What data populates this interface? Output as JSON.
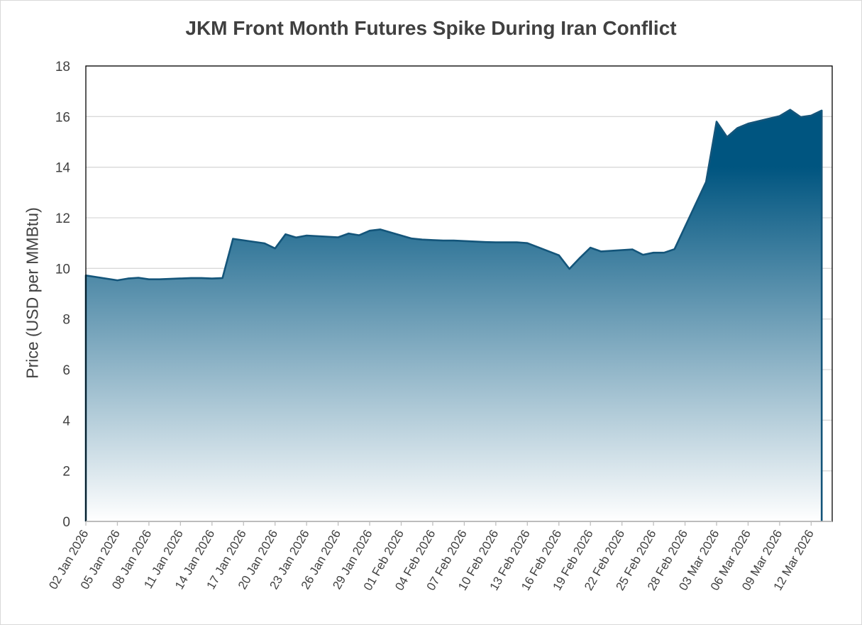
{
  "chart_data": {
    "type": "area",
    "title": "JKM Front Month Futures Spike During Iran Conflict",
    "xlabel": "",
    "ylabel": "Price (USD per MMBtu)",
    "ylim": [
      0,
      18
    ],
    "yticks": [
      0,
      2,
      4,
      6,
      8,
      10,
      12,
      14,
      16,
      18
    ],
    "xlim": [
      "2026-01-02",
      "2026-03-14"
    ],
    "xtick_labels": [
      "02 Jan 2026",
      "05 Jan 2026",
      "08 Jan 2026",
      "11 Jan 2026",
      "14 Jan 2026",
      "17 Jan 2026",
      "20 Jan 2026",
      "23 Jan 2026",
      "26 Jan 2026",
      "29 Jan 2026",
      "01 Feb 2026",
      "04 Feb 2026",
      "07 Feb 2026",
      "10 Feb 2026",
      "13 Feb 2026",
      "16 Feb 2026",
      "19 Feb 2026",
      "22 Feb 2026",
      "25 Feb 2026",
      "28 Feb 2026",
      "03 Mar 2026",
      "06 Mar 2026",
      "09 Mar 2026",
      "12 Mar 2026"
    ],
    "grid": true,
    "legend": "none",
    "colors": {
      "line": "#14557a",
      "fill_top": "#005580",
      "fill_bottom": "#ffffff",
      "grid": "#d9d9d9",
      "axis": "#000000"
    },
    "series": [
      {
        "x": [
          "2026-01-02",
          "2026-01-05",
          "2026-01-06",
          "2026-01-07",
          "2026-01-08",
          "2026-01-09",
          "2026-01-12",
          "2026-01-13",
          "2026-01-14",
          "2026-01-15",
          "2026-01-16",
          "2026-01-19",
          "2026-01-20",
          "2026-01-21",
          "2026-01-22",
          "2026-01-23",
          "2026-01-26",
          "2026-01-27",
          "2026-01-28",
          "2026-01-29",
          "2026-01-30",
          "2026-02-02",
          "2026-02-03",
          "2026-02-04",
          "2026-02-05",
          "2026-02-06",
          "2026-02-09",
          "2026-02-10",
          "2026-02-11",
          "2026-02-12",
          "2026-02-13",
          "2026-02-16",
          "2026-02-17",
          "2026-02-18",
          "2026-02-19",
          "2026-02-20",
          "2026-02-23",
          "2026-02-24",
          "2026-02-25",
          "2026-02-26",
          "2026-02-27",
          "2026-03-02",
          "2026-03-03",
          "2026-03-04",
          "2026-03-05",
          "2026-03-06",
          "2026-03-09",
          "2026-03-10",
          "2026-03-11",
          "2026-03-12",
          "2026-03-13"
        ],
        "values": [
          9.72,
          9.53,
          9.6,
          9.63,
          9.57,
          9.57,
          9.62,
          9.62,
          9.6,
          9.62,
          11.17,
          10.99,
          10.79,
          11.35,
          11.22,
          11.3,
          11.23,
          11.38,
          11.31,
          11.49,
          11.54,
          11.18,
          11.14,
          11.12,
          11.1,
          11.1,
          11.04,
          11.03,
          11.03,
          11.03,
          11.0,
          10.52,
          9.98,
          10.42,
          10.82,
          10.67,
          10.75,
          10.54,
          10.62,
          10.62,
          10.76,
          13.42,
          15.8,
          15.19,
          15.55,
          15.72,
          16.02,
          16.27,
          15.98,
          16.04,
          16.24
        ]
      }
    ]
  }
}
